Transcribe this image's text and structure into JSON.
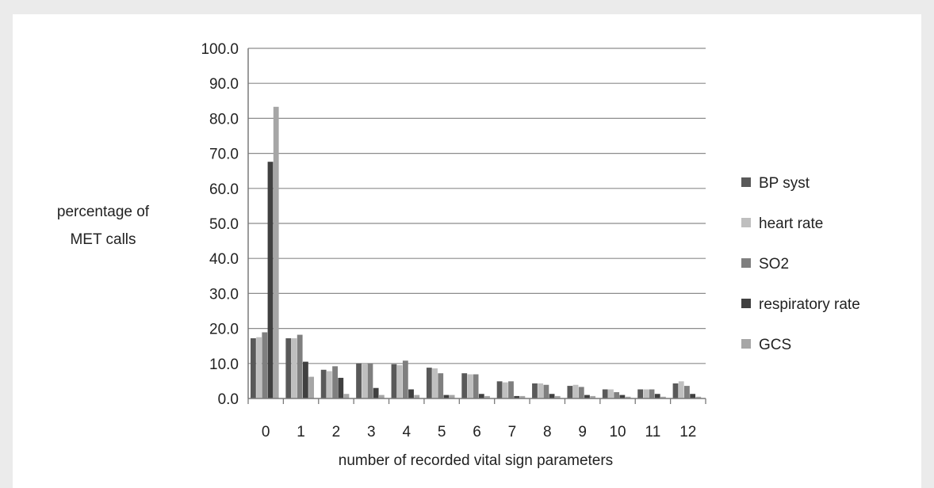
{
  "chart_data": {
    "type": "bar",
    "title": "",
    "xlabel": "number of recorded vital sign parameters",
    "ylabel_lines": [
      "percentage of",
      "MET calls"
    ],
    "ylim": [
      0,
      100
    ],
    "yticks": [
      "0.0",
      "10.0",
      "20.0",
      "30.0",
      "40.0",
      "50.0",
      "60.0",
      "70.0",
      "80.0",
      "90.0",
      "100.0"
    ],
    "grid": true,
    "legend_position": "right",
    "categories": [
      "0",
      "1",
      "2",
      "3",
      "4",
      "5",
      "6",
      "7",
      "8",
      "9",
      "10",
      "11",
      "12"
    ],
    "series": [
      {
        "name": " BP syst",
        "color": "#595959",
        "values": [
          17.2,
          17.2,
          8.2,
          10.0,
          9.8,
          8.8,
          7.2,
          4.9,
          4.3,
          3.6,
          2.6,
          2.6,
          4.3
        ]
      },
      {
        "name": "heart rate",
        "color": "#bfbfbf",
        "values": [
          17.5,
          17.2,
          7.8,
          10.0,
          9.5,
          8.6,
          6.9,
          4.6,
          4.3,
          3.9,
          2.6,
          2.6,
          4.9
        ]
      },
      {
        "name": "SO2",
        "color": "#7f7f7f",
        "values": [
          18.9,
          18.2,
          9.2,
          10.0,
          10.8,
          7.2,
          6.9,
          4.9,
          3.9,
          3.3,
          1.8,
          2.6,
          3.6
        ]
      },
      {
        "name": "respiratory rate",
        "color": "#404040",
        "values": [
          67.6,
          10.5,
          5.9,
          3.0,
          2.6,
          1.0,
          1.3,
          0.7,
          1.3,
          1.0,
          1.0,
          1.3,
          1.3
        ]
      },
      {
        "name": "GCS",
        "color": "#a6a6a6",
        "values": [
          83.3,
          6.2,
          1.3,
          1.0,
          1.0,
          1.0,
          0.7,
          0.7,
          0.7,
          0.7,
          0.5,
          0.5,
          0.5
        ]
      }
    ]
  }
}
